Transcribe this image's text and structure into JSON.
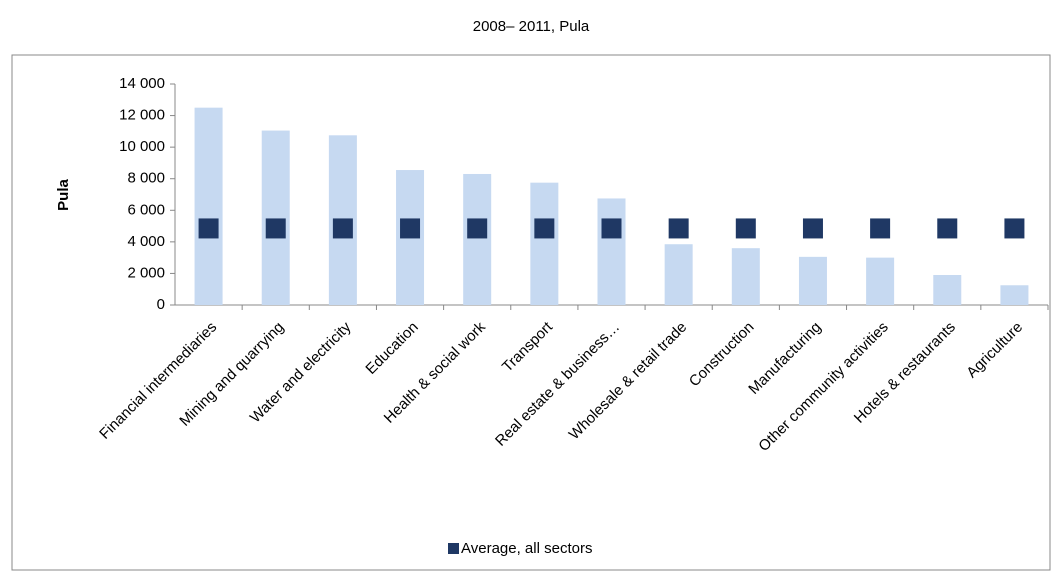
{
  "chart_data": {
    "type": "bar",
    "title": "2008– 2011, Pula",
    "y_label": "Pula",
    "categories": [
      "Financial intermediaries",
      "Mining and quarrying",
      "Water and electricity",
      "Education",
      "Health & social work",
      "Transport",
      "Real estate & business…",
      "Wholesale & retail trade",
      "Construction",
      "Manufacturing",
      "Other community activities",
      "Hotels & restaurants",
      "Agriculture"
    ],
    "series": [
      {
        "color": "#c6d9f1",
        "values": [
          12500,
          11050,
          10750,
          8550,
          8300,
          7750,
          6750,
          3850,
          3600,
          3050,
          3000,
          1900,
          1250
        ]
      },
      {
        "name": "Average, all sectors",
        "color": "#1f3864",
        "marker": "square",
        "values": [
          4850,
          4850,
          4850,
          4850,
          4850,
          4850,
          4850,
          4850,
          4850,
          4850,
          4850,
          4850,
          4850
        ]
      }
    ],
    "ylim": [
      0,
      14000
    ],
    "yticks": [
      0,
      {
        "value": 2000,
        "label": "2 000"
      },
      {
        "value": 4000,
        "label": "4 000"
      },
      {
        "value": 6000,
        "label": "6 000"
      },
      {
        "value": 8000,
        "label": "8 000"
      },
      {
        "value": 10000,
        "label": "10 000"
      },
      {
        "value": 12000,
        "label": "12 000"
      },
      {
        "value": 14000,
        "label": "14 000"
      }
    ],
    "legend": "bottom",
    "grid": false
  }
}
